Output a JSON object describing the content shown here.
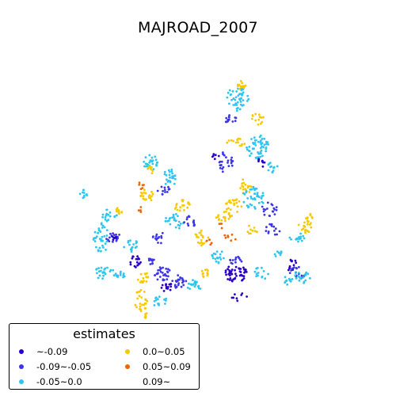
{
  "title": "MAJROAD_2007",
  "chart_data": {
    "type": "scatter",
    "title": "MAJROAD_2007",
    "legend_title": "estimates",
    "legend_placement": "bottom-left",
    "grid": false,
    "classes": [
      {
        "label": "~-0.09",
        "color": "#2a00c8"
      },
      {
        "label": "-0.09~-0.05",
        "color": "#3d35e6"
      },
      {
        "label": "-0.05~0.0",
        "color": "#2dc6f0"
      },
      {
        "label": "0.0~0.05",
        "color": "#f8c800"
      },
      {
        "label": "0.05~0.09",
        "color": "#f06400"
      },
      {
        "label": "0.09~",
        "color": "#ffffff"
      }
    ]
  }
}
